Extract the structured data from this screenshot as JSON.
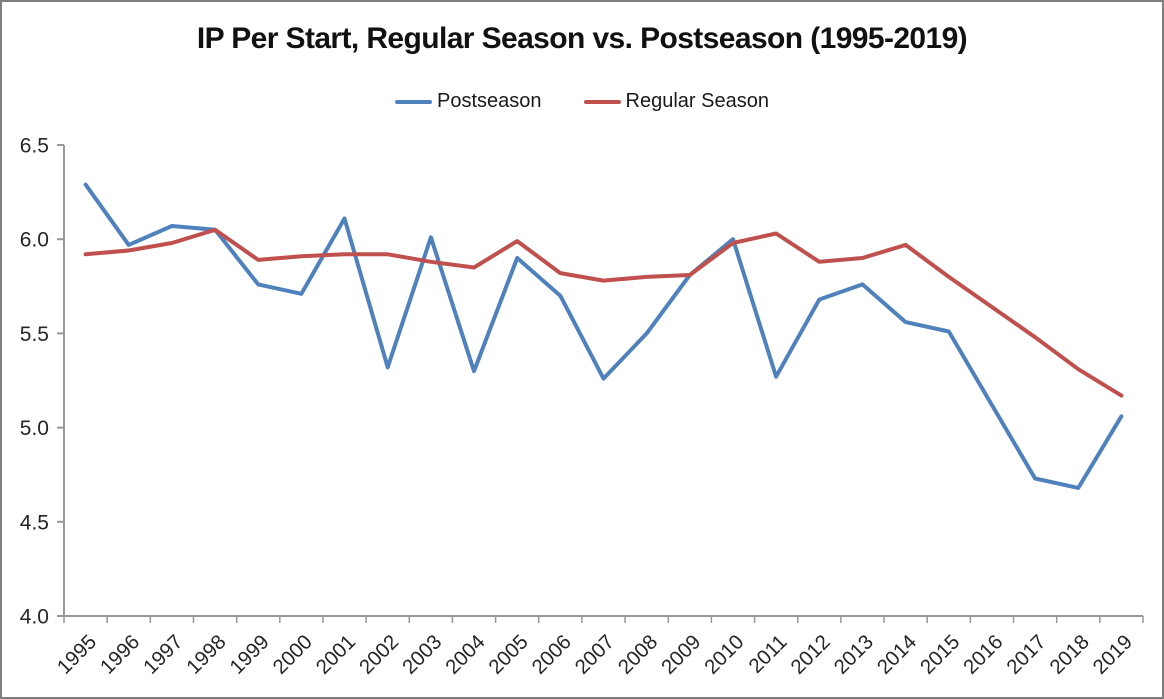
{
  "header": {
    "title": "IP Per Start, Regular Season vs. Postseason (1995-2019)"
  },
  "legend": {
    "items": [
      {
        "label": "Postseason",
        "color": "#4F81BD"
      },
      {
        "label": "Regular Season",
        "color": "#C0504D"
      }
    ]
  },
  "chart_data": {
    "type": "line",
    "title": "IP Per Start, Regular Season vs. Postseason (1995-2019)",
    "xlabel": "",
    "ylabel": "",
    "categories": [
      "1995",
      "1996",
      "1997",
      "1998",
      "1999",
      "2000",
      "2001",
      "2002",
      "2003",
      "2004",
      "2005",
      "2006",
      "2007",
      "2008",
      "2009",
      "2010",
      "2011",
      "2012",
      "2013",
      "2014",
      "2015",
      "2016",
      "2017",
      "2018",
      "2019"
    ],
    "series": [
      {
        "name": "Postseason",
        "color": "#4F81BD",
        "values": [
          6.29,
          5.97,
          6.07,
          6.05,
          5.76,
          5.71,
          6.11,
          5.32,
          6.01,
          5.3,
          5.9,
          5.7,
          5.26,
          5.5,
          5.81,
          6.0,
          5.27,
          5.68,
          5.76,
          5.56,
          5.51,
          5.12,
          4.73,
          4.68,
          5.06
        ]
      },
      {
        "name": "Regular Season",
        "color": "#C0504D",
        "values": [
          5.92,
          5.94,
          5.98,
          6.05,
          5.89,
          5.91,
          5.92,
          5.92,
          5.88,
          5.85,
          5.99,
          5.82,
          5.78,
          5.8,
          5.81,
          5.98,
          6.03,
          5.88,
          5.9,
          5.97,
          5.8,
          5.64,
          5.48,
          5.31,
          5.17
        ]
      }
    ],
    "ylim": [
      4.0,
      6.5
    ],
    "yticks": [
      6.5,
      6.0,
      5.5,
      5.0,
      4.5,
      4.0
    ],
    "ytick_labels": [
      "6.5",
      "6.0",
      "5.5",
      "5.0",
      "4.5",
      "4.0"
    ],
    "xtick_rotation": -45,
    "grid": false,
    "legend_position": "top",
    "axis_color": "#989898",
    "text_color": "#262626",
    "line_width": 4
  }
}
